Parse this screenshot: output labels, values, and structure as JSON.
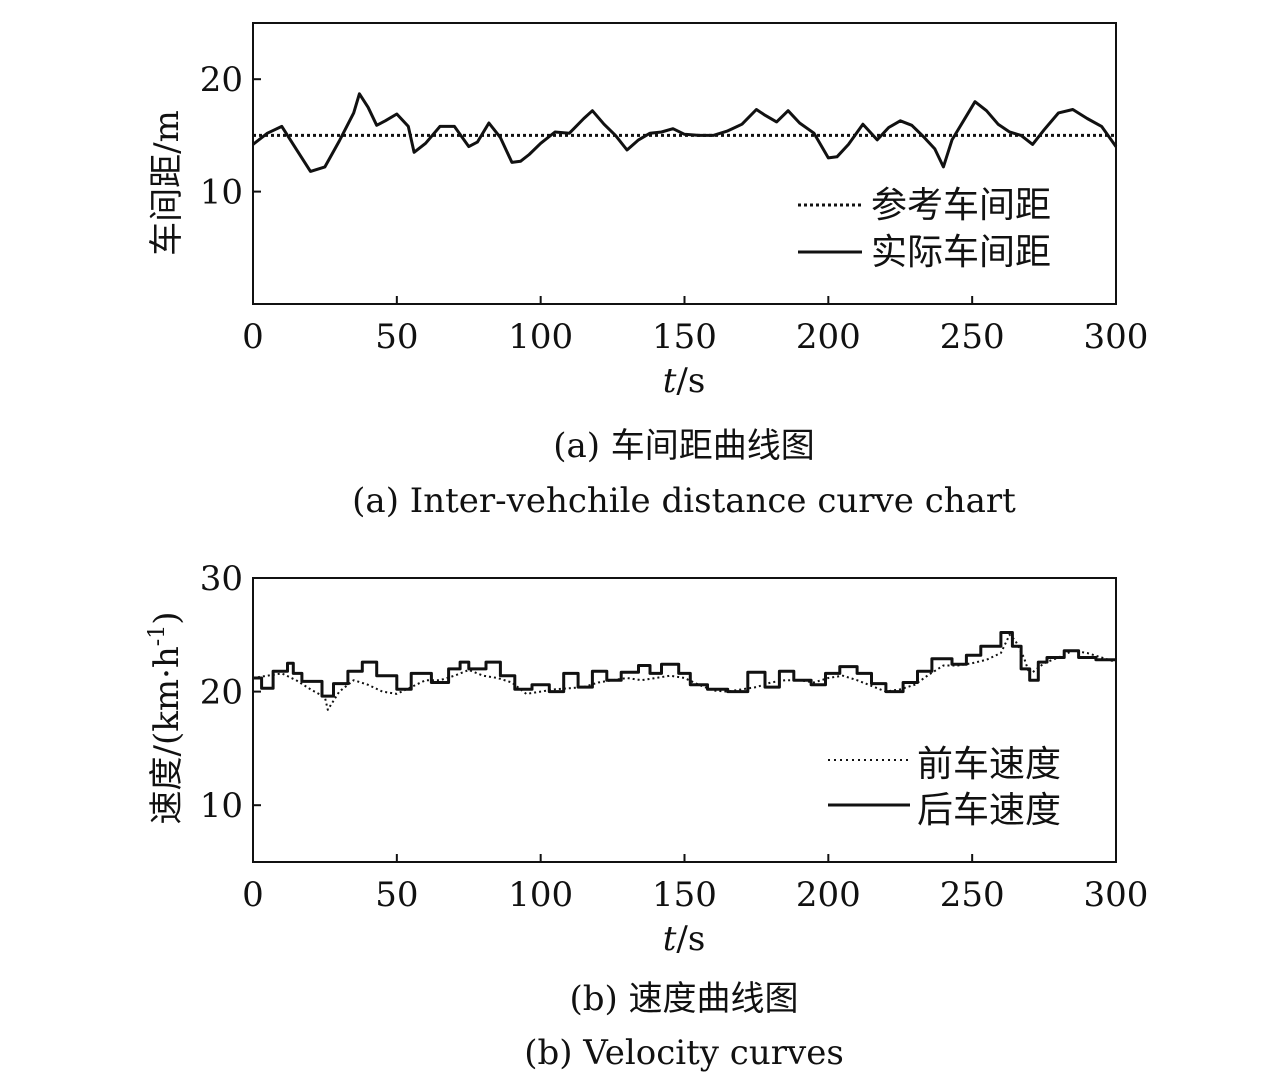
{
  "chart_data": [
    {
      "type": "line",
      "ylabel": "车间距/m",
      "xlabel_italic": "t",
      "xlabel_unit": "/s",
      "xlim": [
        0,
        300
      ],
      "ylim": [
        0,
        25
      ],
      "x_ticks": [
        0,
        50,
        100,
        150,
        200,
        250,
        300
      ],
      "x_tick_labels": [
        "0",
        "50",
        "100",
        "150",
        "200",
        "250",
        "300"
      ],
      "y_ticks": [
        10,
        20
      ],
      "y_tick_labels": [
        "10",
        "20"
      ],
      "grid": false,
      "legend_position": "bottom-right",
      "caption_cn": "(a) 车间距曲线图",
      "caption_en": "(a) Inter-vehchile distance curve chart",
      "series": [
        {
          "name": "参考车间距",
          "style": "dotted",
          "x": [
            0,
            300
          ],
          "y": [
            15,
            15
          ]
        },
        {
          "name": "实际车间距",
          "style": "solid",
          "x": [
            0,
            5,
            10,
            15,
            20,
            25,
            30,
            35,
            37,
            40,
            43,
            46,
            50,
            54,
            56,
            60,
            65,
            70,
            75,
            78,
            82,
            86,
            90,
            93,
            96,
            100,
            105,
            110,
            115,
            118,
            122,
            126,
            130,
            134,
            138,
            142,
            146,
            150,
            155,
            160,
            165,
            170,
            175,
            178,
            182,
            186,
            190,
            195,
            200,
            203,
            207,
            212,
            217,
            221,
            225,
            229,
            233,
            237,
            240,
            243,
            247,
            251,
            255,
            259,
            263,
            267,
            271,
            275,
            280,
            285,
            290,
            295,
            300
          ],
          "y": [
            14.2,
            15.2,
            15.8,
            13.8,
            11.8,
            12.2,
            14.5,
            17.0,
            18.7,
            17.5,
            15.9,
            16.3,
            16.9,
            15.8,
            13.5,
            14.3,
            15.8,
            15.8,
            14.0,
            14.4,
            16.1,
            14.8,
            12.6,
            12.7,
            13.3,
            14.3,
            15.3,
            15.2,
            16.5,
            17.2,
            16.0,
            15.0,
            13.7,
            14.6,
            15.2,
            15.3,
            15.6,
            15.1,
            15.0,
            15.0,
            15.4,
            16.0,
            17.3,
            16.8,
            16.2,
            17.2,
            16.1,
            15.2,
            13.0,
            13.1,
            14.2,
            16.0,
            14.6,
            15.7,
            16.3,
            15.9,
            14.9,
            13.8,
            12.2,
            14.6,
            16.3,
            18.0,
            17.2,
            16.0,
            15.3,
            15.0,
            14.2,
            15.5,
            17.0,
            17.3,
            16.5,
            15.8,
            14.0
          ]
        }
      ]
    },
    {
      "type": "line",
      "ylabel": "速度/(km·h",
      "ylabel_sup": "-1",
      "ylabel_end": ")",
      "xlabel_italic": "t",
      "xlabel_unit": "/s",
      "xlim": [
        0,
        300
      ],
      "ylim": [
        5,
        30
      ],
      "x_ticks": [
        0,
        50,
        100,
        150,
        200,
        250,
        300
      ],
      "x_tick_labels": [
        "0",
        "50",
        "100",
        "150",
        "200",
        "250",
        "300"
      ],
      "y_ticks": [
        10,
        20,
        30
      ],
      "y_tick_labels": [
        "10",
        "20",
        "30"
      ],
      "grid": false,
      "legend_position": "bottom-right",
      "caption_cn": "(b) 速度曲线图",
      "caption_en": "(b) Velocity curves",
      "series": [
        {
          "name": "前车速度",
          "style": "dotted",
          "x": [
            0,
            5,
            10,
            15,
            20,
            25,
            26,
            30,
            35,
            40,
            45,
            50,
            55,
            60,
            65,
            70,
            75,
            80,
            85,
            90,
            95,
            100,
            105,
            110,
            115,
            120,
            125,
            130,
            135,
            140,
            145,
            150,
            155,
            160,
            165,
            170,
            175,
            180,
            185,
            190,
            195,
            200,
            205,
            210,
            215,
            220,
            225,
            230,
            235,
            240,
            245,
            250,
            255,
            260,
            263,
            265,
            268,
            270,
            275,
            280,
            285,
            290,
            295,
            300
          ],
          "y": [
            21.2,
            21.4,
            21.6,
            21.0,
            20.2,
            19.5,
            18.4,
            20.0,
            21.0,
            20.6,
            20.0,
            19.8,
            20.4,
            21.0,
            21.0,
            21.4,
            21.9,
            21.4,
            21.2,
            20.8,
            19.8,
            20.0,
            20.2,
            20.3,
            20.4,
            20.8,
            21.0,
            21.2,
            21.0,
            21.2,
            21.4,
            21.2,
            20.6,
            20.1,
            20.0,
            20.2,
            20.4,
            20.8,
            21.0,
            21.0,
            20.8,
            21.2,
            21.4,
            21.0,
            20.5,
            20.0,
            20.2,
            20.6,
            21.5,
            22.3,
            22.3,
            22.5,
            22.8,
            23.4,
            25.0,
            24.5,
            23.0,
            21.5,
            22.5,
            23.0,
            23.6,
            23.4,
            23.0,
            22.6
          ]
        },
        {
          "name": "后车速度",
          "style": "solid",
          "x": [
            0,
            3,
            3,
            7,
            7,
            12,
            12,
            14,
            14,
            17,
            17,
            24,
            24,
            28,
            28,
            33,
            33,
            38,
            38,
            43,
            43,
            50,
            50,
            55,
            55,
            62,
            62,
            68,
            68,
            72,
            72,
            75,
            75,
            81,
            81,
            86,
            86,
            91,
            91,
            97,
            97,
            103,
            103,
            108,
            108,
            113,
            113,
            118,
            118,
            123,
            123,
            128,
            128,
            134,
            134,
            138,
            138,
            142,
            142,
            148,
            148,
            152,
            152,
            158,
            158,
            165,
            165,
            172,
            172,
            178,
            178,
            183,
            183,
            188,
            188,
            194,
            194,
            199,
            199,
            204,
            204,
            210,
            210,
            215,
            215,
            220,
            220,
            226,
            226,
            231,
            231,
            236,
            236,
            243,
            243,
            248,
            248,
            253,
            253,
            260,
            260,
            264,
            264,
            267,
            267,
            270,
            270,
            273,
            273,
            276,
            276,
            282,
            282,
            287,
            287,
            293,
            293,
            300
          ],
          "y": [
            21.2,
            21.2,
            20.3,
            20.3,
            21.8,
            21.8,
            22.5,
            22.5,
            21.6,
            21.6,
            20.9,
            20.9,
            19.6,
            19.6,
            20.7,
            20.7,
            21.8,
            21.8,
            22.6,
            22.6,
            21.4,
            21.4,
            20.2,
            20.2,
            21.6,
            21.6,
            20.8,
            20.8,
            22.0,
            22.0,
            22.6,
            22.6,
            22.0,
            22.0,
            22.6,
            22.6,
            21.4,
            21.4,
            20.2,
            20.2,
            20.6,
            20.6,
            20.0,
            20.0,
            21.6,
            21.6,
            20.4,
            20.4,
            21.8,
            21.8,
            21.0,
            21.0,
            21.7,
            21.7,
            22.3,
            22.3,
            21.6,
            21.6,
            22.4,
            22.4,
            21.6,
            21.6,
            20.6,
            20.6,
            20.2,
            20.2,
            20.0,
            20.0,
            21.7,
            21.7,
            20.4,
            20.4,
            21.8,
            21.8,
            21.0,
            21.0,
            20.6,
            20.6,
            21.6,
            21.6,
            22.2,
            22.2,
            21.6,
            21.6,
            20.7,
            20.7,
            20.0,
            20.0,
            20.8,
            20.8,
            21.8,
            21.8,
            22.9,
            22.9,
            22.4,
            22.4,
            23.2,
            23.2,
            24.0,
            24.0,
            25.2,
            25.2,
            24.0,
            24.0,
            22.0,
            22.0,
            21.0,
            21.0,
            22.6,
            22.6,
            23.0,
            23.0,
            23.6,
            23.6,
            23.0,
            23.0,
            22.8,
            22.8
          ]
        }
      ]
    }
  ]
}
